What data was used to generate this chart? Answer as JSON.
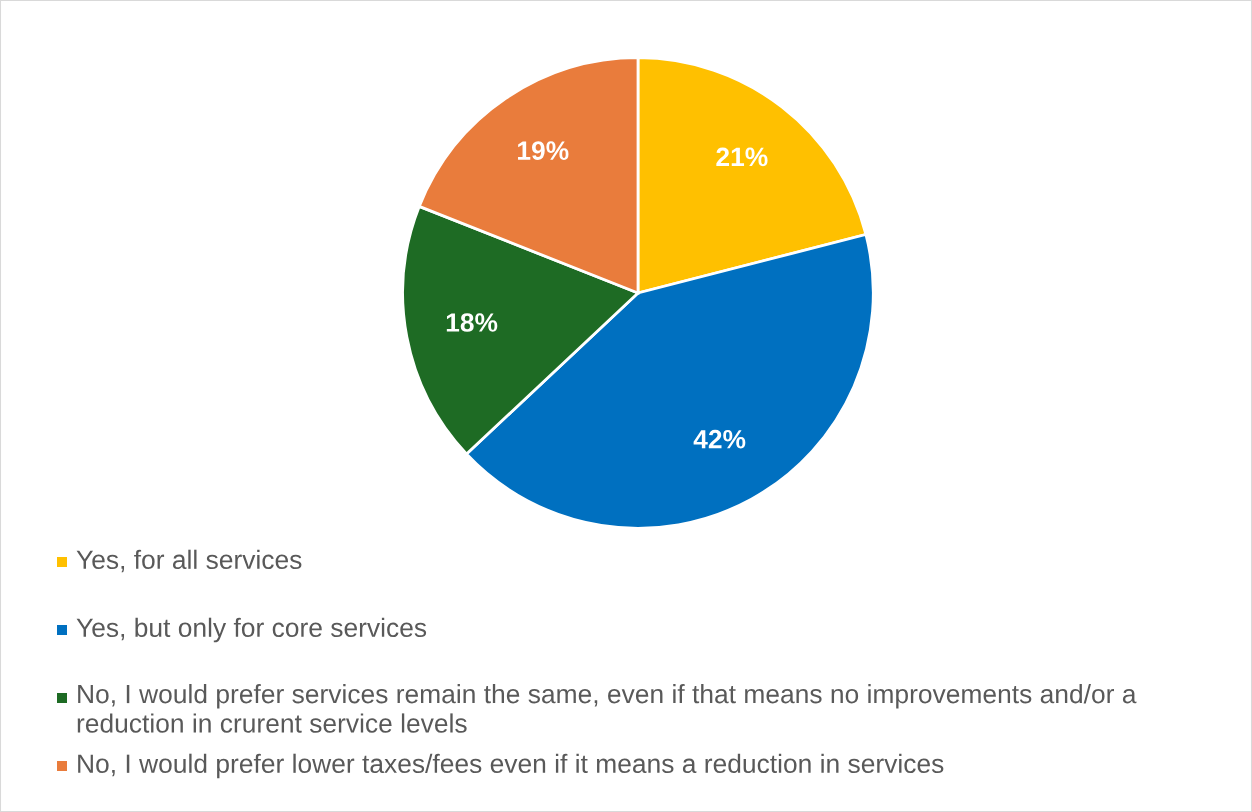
{
  "chart_data": {
    "type": "pie",
    "categories": [
      "Yes, for all services",
      "Yes, but only for core services",
      "No, I would prefer services remain the same, even if that means no improvements and/or a reduction in crurent service levels",
      "No, I would prefer lower taxes/fees even if it means a reduction in services"
    ],
    "values": [
      21,
      42,
      18,
      19
    ],
    "colors": [
      "#ffc000",
      "#0070c0",
      "#1e6b24",
      "#e97c3c"
    ],
    "value_labels": [
      "21%",
      "42%",
      "18%",
      "19%"
    ],
    "legend": "bottom"
  }
}
